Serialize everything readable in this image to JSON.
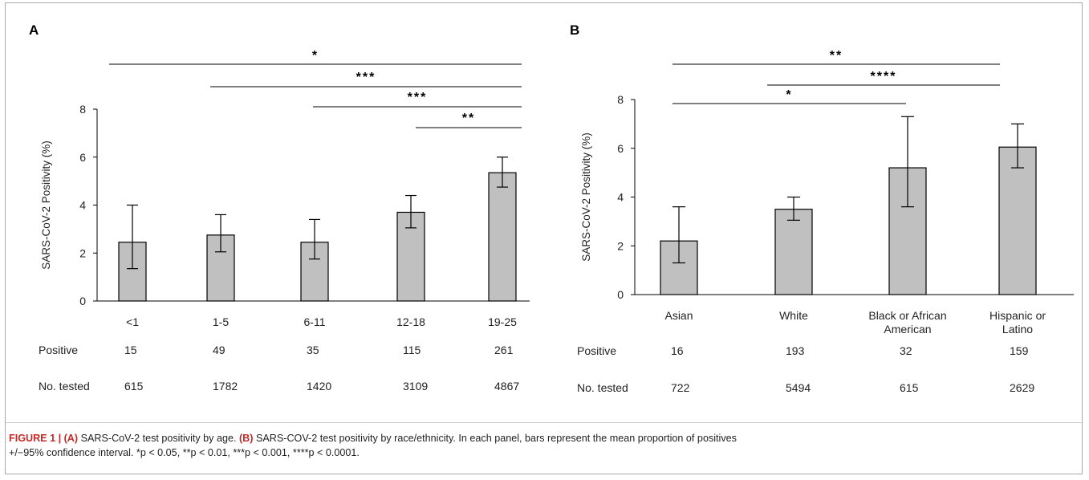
{
  "chart_data": [
    {
      "type": "bar",
      "panel": "A",
      "ylabel": "SARS-CoV-2 Positivity (%)",
      "ylim": [
        0,
        8
      ],
      "yticks": [
        0,
        2,
        4,
        6,
        8
      ],
      "categories": [
        "<1",
        "1-5",
        "6-11",
        "12-18",
        "19-25"
      ],
      "category_lines": [
        [
          "<1"
        ],
        [
          "1-5"
        ],
        [
          "6-11"
        ],
        [
          "12-18"
        ],
        [
          "19-25"
        ]
      ],
      "values": [
        2.45,
        2.75,
        2.45,
        3.7,
        5.35
      ],
      "ci_lower": [
        1.35,
        2.05,
        1.75,
        3.05,
        4.75
      ],
      "ci_upper": [
        4.0,
        3.6,
        3.4,
        4.4,
        6.0
      ],
      "rows": [
        {
          "label": "Positive",
          "values": [
            "15",
            "49",
            "35",
            "115",
            "261"
          ]
        },
        {
          "label": "No. tested",
          "values": [
            "615",
            "1782",
            "1420",
            "3109",
            "4867"
          ]
        }
      ],
      "significance": [
        {
          "from": 0,
          "to": 4,
          "stars": "*"
        },
        {
          "from": 1,
          "to": 4,
          "stars": "***"
        },
        {
          "from": 2,
          "to": 4,
          "stars": "***"
        },
        {
          "from": 3,
          "to": 4,
          "stars": "**"
        }
      ],
      "grid": false,
      "bar_color": "#c0c0c0"
    },
    {
      "type": "bar",
      "panel": "B",
      "ylabel": "SARS-CoV-2 Positivity (%)",
      "ylim": [
        0,
        8
      ],
      "yticks": [
        0,
        2,
        4,
        6,
        8
      ],
      "categories": [
        "Asian",
        "White",
        "Black or African American",
        "Hispanic or Latino"
      ],
      "category_lines": [
        [
          "Asian"
        ],
        [
          "White"
        ],
        [
          "Black or African",
          "American"
        ],
        [
          "Hispanic or",
          "Latino"
        ]
      ],
      "values": [
        2.2,
        3.5,
        5.2,
        6.05
      ],
      "ci_lower": [
        1.3,
        3.05,
        3.6,
        5.2
      ],
      "ci_upper": [
        3.6,
        4.0,
        7.3,
        7.0
      ],
      "rows": [
        {
          "label": "Positive",
          "values": [
            "16",
            "193",
            "32",
            "159"
          ]
        },
        {
          "label": "No. tested",
          "values": [
            "722",
            "5494",
            "615",
            "2629"
          ]
        }
      ],
      "significance": [
        {
          "from": 0,
          "to": 3,
          "stars": "**"
        },
        {
          "from": 1,
          "to": 3,
          "stars": "****"
        },
        {
          "from": 0,
          "to": 2,
          "stars": "*"
        }
      ],
      "grid": false,
      "bar_color": "#c0c0c0"
    }
  ],
  "caption": {
    "figure_label": "FIGURE 1 | ",
    "part_a_label": "(A)",
    "part_a_text": " SARS-CoV-2 test positivity by age. ",
    "part_b_label": "(B)",
    "part_b_text": " SARS-COV-2 test positivity by race/ethnicity. In each panel, bars represent the mean proportion of positives",
    "line2": "+/−95% confidence interval. *p < 0.05, **p < 0.01, ***p < 0.001, ****p < 0.0001."
  }
}
